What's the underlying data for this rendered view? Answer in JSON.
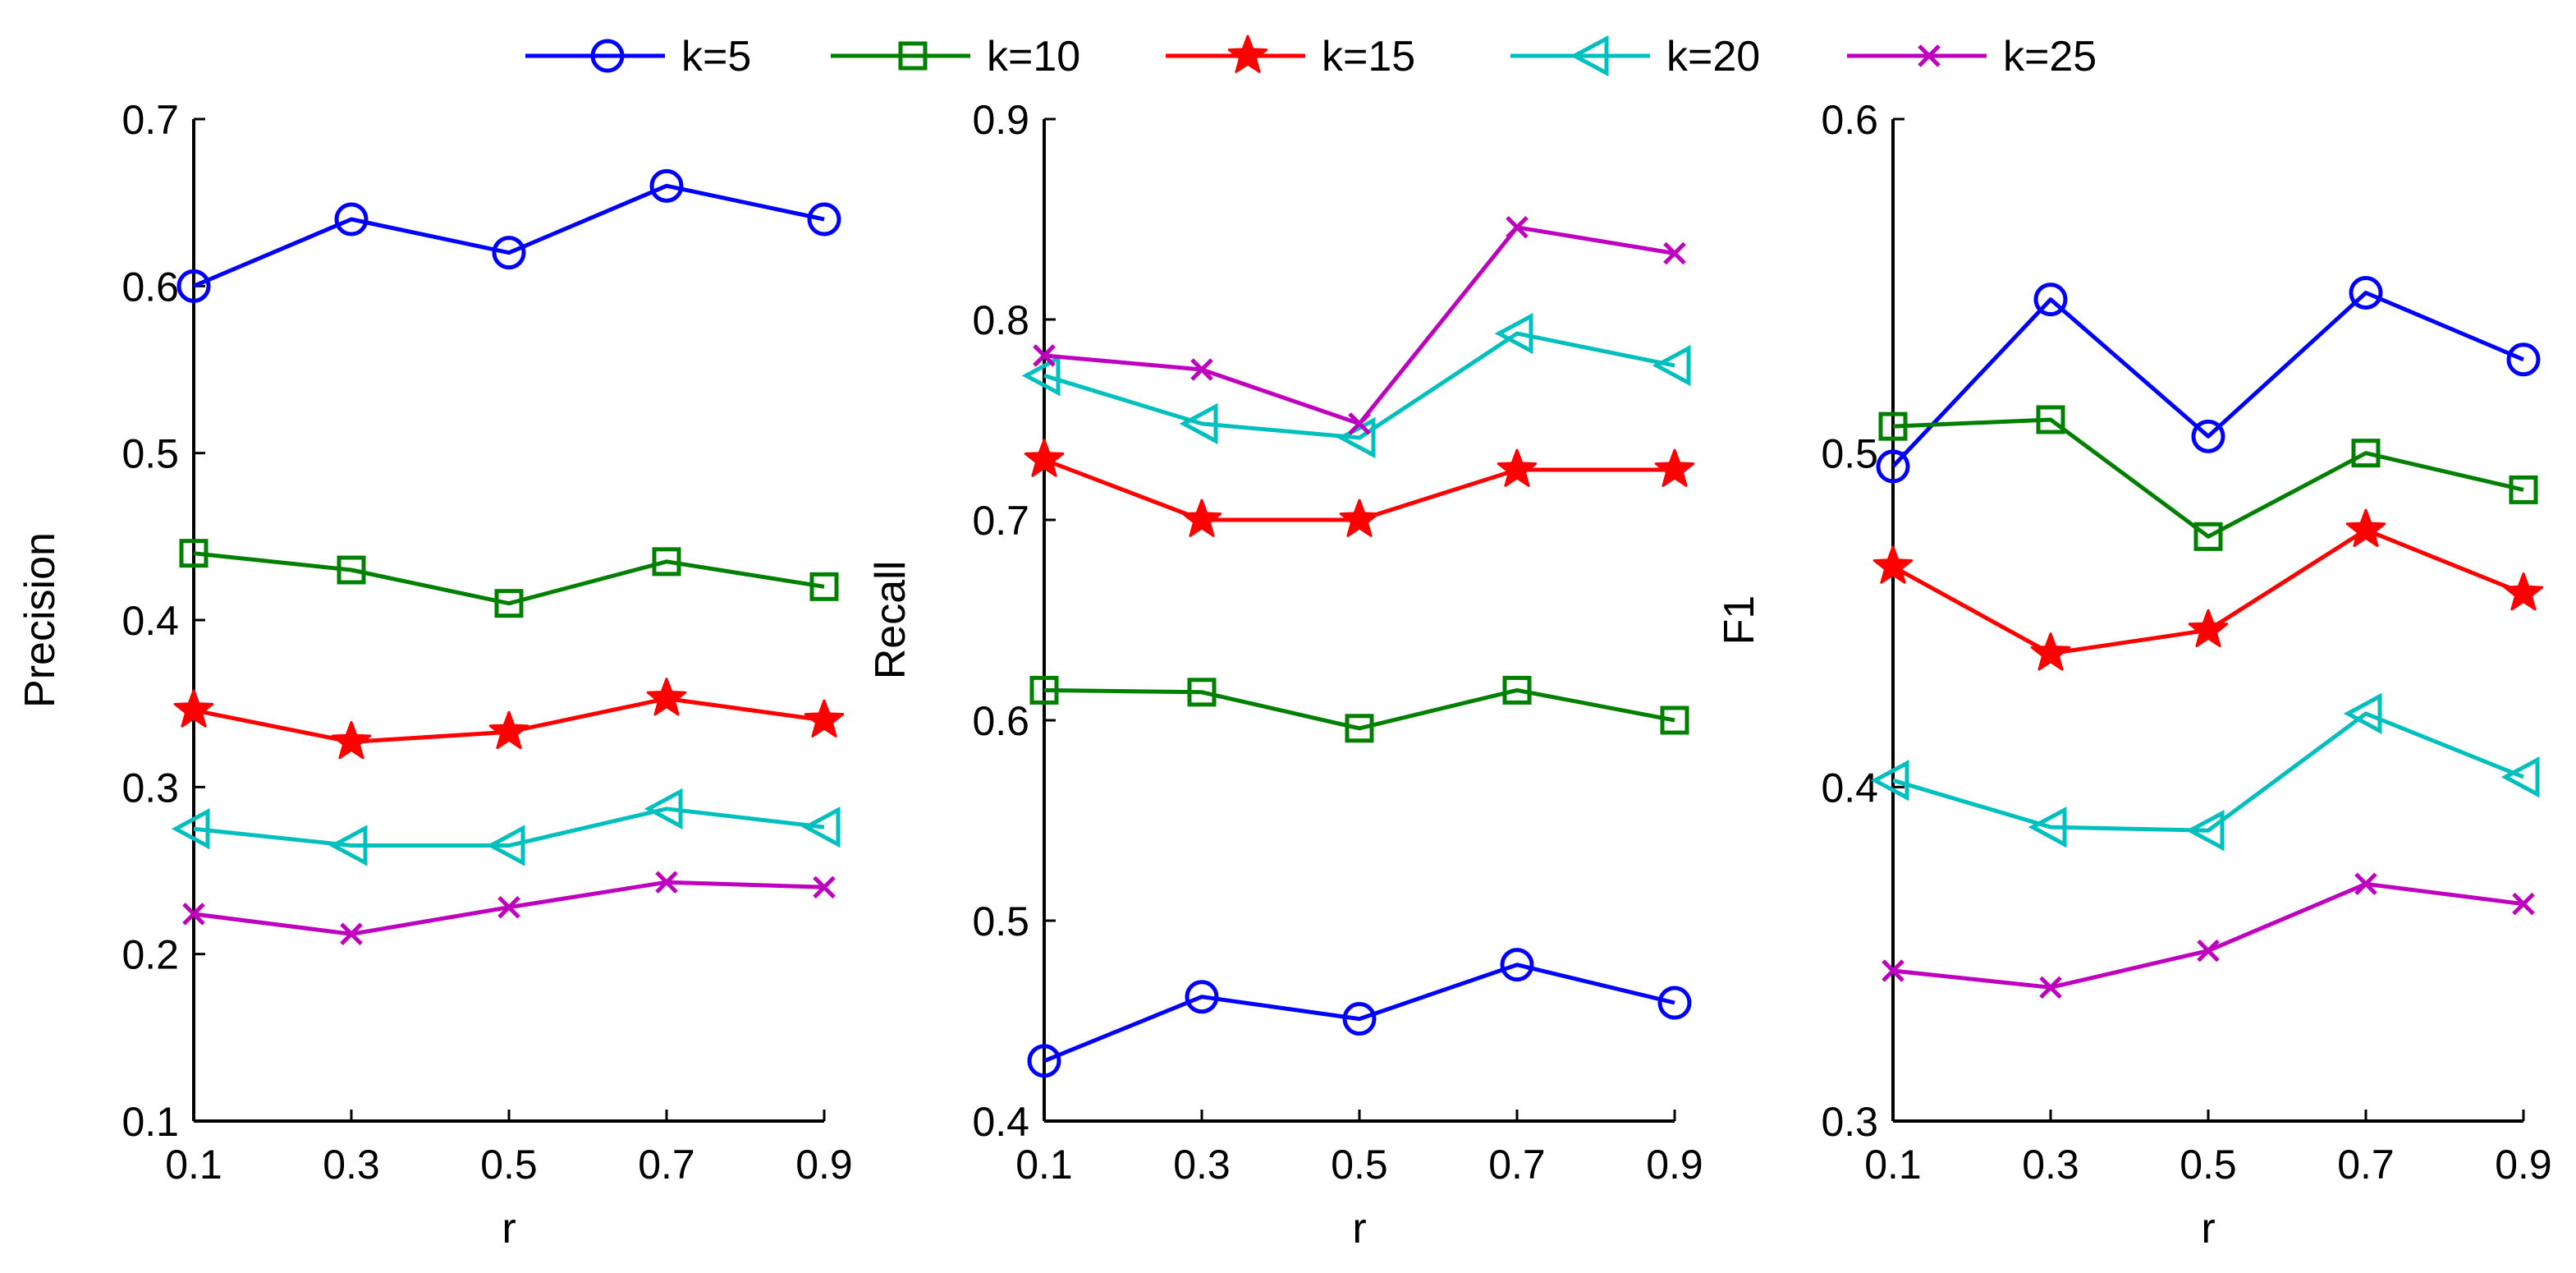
{
  "legend": [
    {
      "key": "k5",
      "label": "k=5"
    },
    {
      "key": "k10",
      "label": "k=10"
    },
    {
      "key": "k15",
      "label": "k=15"
    },
    {
      "key": "k20",
      "label": "k=20"
    },
    {
      "key": "k25",
      "label": "k=25"
    }
  ],
  "series_style": {
    "k5": {
      "color": "#0000ff",
      "marker": "circle"
    },
    "k10": {
      "color": "#008000",
      "marker": "square"
    },
    "k15": {
      "color": "#ff0000",
      "marker": "star"
    },
    "k20": {
      "color": "#00bfbf",
      "marker": "triangle-left"
    },
    "k25": {
      "color": "#bf00bf",
      "marker": "x"
    }
  },
  "chart_data": [
    {
      "type": "line",
      "title": "",
      "xlabel": "r",
      "ylabel": "Precision",
      "x": [
        0.1,
        0.3,
        0.5,
        0.7,
        0.9
      ],
      "x_tick_labels": [
        "0.1",
        "0.3",
        "0.5",
        "0.7",
        "0.9"
      ],
      "xlim": [
        0.1,
        0.9
      ],
      "ylim": [
        0.1,
        0.7
      ],
      "y_ticks": [
        0.1,
        0.2,
        0.3,
        0.4,
        0.5,
        0.6,
        0.7
      ],
      "y_tick_labels": [
        "0.1",
        "0.2",
        "0.3",
        "0.4",
        "0.5",
        "0.6",
        "0.7"
      ],
      "series": [
        {
          "name": "k=5",
          "key": "k5",
          "values": [
            0.6,
            0.64,
            0.62,
            0.66,
            0.64
          ]
        },
        {
          "name": "k=10",
          "key": "k10",
          "values": [
            0.44,
            0.43,
            0.41,
            0.435,
            0.42
          ]
        },
        {
          "name": "k=15",
          "key": "k15",
          "values": [
            0.346,
            0.327,
            0.333,
            0.353,
            0.34
          ]
        },
        {
          "name": "k=20",
          "key": "k20",
          "values": [
            0.275,
            0.265,
            0.265,
            0.287,
            0.276
          ]
        },
        {
          "name": "k=25",
          "key": "k25",
          "values": [
            0.224,
            0.212,
            0.228,
            0.243,
            0.24
          ]
        }
      ]
    },
    {
      "type": "line",
      "title": "",
      "xlabel": "r",
      "ylabel": "Recall",
      "x": [
        0.1,
        0.3,
        0.5,
        0.7,
        0.9
      ],
      "x_tick_labels": [
        "0.1",
        "0.3",
        "0.5",
        "0.7",
        "0.9"
      ],
      "xlim": [
        0.1,
        0.9
      ],
      "ylim": [
        0.4,
        0.9
      ],
      "y_ticks": [
        0.4,
        0.5,
        0.6,
        0.7,
        0.8,
        0.9
      ],
      "y_tick_labels": [
        "0.4",
        "0.5",
        "0.6",
        "0.7",
        "0.8",
        "0.9"
      ],
      "series": [
        {
          "name": "k=5",
          "key": "k5",
          "values": [
            0.43,
            0.462,
            0.451,
            0.478,
            0.459
          ]
        },
        {
          "name": "k=10",
          "key": "k10",
          "values": [
            0.615,
            0.614,
            0.596,
            0.615,
            0.6
          ]
        },
        {
          "name": "k=15",
          "key": "k15",
          "values": [
            0.73,
            0.7,
            0.7,
            0.725,
            0.725
          ]
        },
        {
          "name": "k=20",
          "key": "k20",
          "values": [
            0.772,
            0.748,
            0.741,
            0.793,
            0.777
          ]
        },
        {
          "name": "k=25",
          "key": "k25",
          "values": [
            0.782,
            0.775,
            0.748,
            0.846,
            0.833
          ]
        }
      ]
    },
    {
      "type": "line",
      "title": "",
      "xlabel": "r",
      "ylabel": "F1",
      "x": [
        0.1,
        0.3,
        0.5,
        0.7,
        0.9
      ],
      "x_tick_labels": [
        "0.1",
        "0.3",
        "0.5",
        "0.7",
        "0.9"
      ],
      "xlim": [
        0.1,
        0.9
      ],
      "ylim": [
        0.3,
        0.6
      ],
      "y_ticks": [
        0.3,
        0.4,
        0.5,
        0.6
      ],
      "y_tick_labels": [
        "0.3",
        "0.4",
        "0.5",
        "0.6"
      ],
      "series": [
        {
          "name": "k=5",
          "key": "k5",
          "values": [
            0.496,
            0.546,
            0.505,
            0.548,
            0.528
          ]
        },
        {
          "name": "k=10",
          "key": "k10",
          "values": [
            0.508,
            0.51,
            0.475,
            0.5,
            0.489
          ]
        },
        {
          "name": "k=15",
          "key": "k15",
          "values": [
            0.466,
            0.44,
            0.447,
            0.477,
            0.458
          ]
        },
        {
          "name": "k=20",
          "key": "k20",
          "values": [
            0.402,
            0.388,
            0.387,
            0.422,
            0.403
          ]
        },
        {
          "name": "k=25",
          "key": "k25",
          "values": [
            0.345,
            0.34,
            0.351,
            0.371,
            0.365
          ]
        }
      ]
    }
  ]
}
